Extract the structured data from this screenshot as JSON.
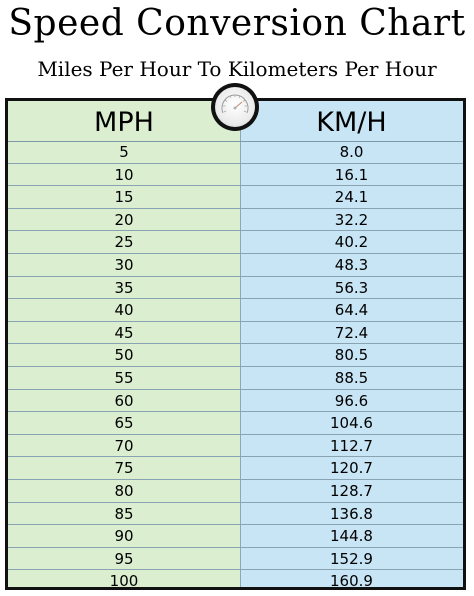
{
  "title": "Speed Conversion Chart",
  "subtitle": "Miles Per Hour To Kilometers Per Hour",
  "icons": {
    "gauge": "speedometer-icon"
  },
  "colors": {
    "mph_column": "#dbeed0",
    "kmh_column": "#c8e5f5",
    "border": "#111111"
  },
  "table": {
    "headers": {
      "mph": "MPH",
      "kmh": "KM/H"
    },
    "rows": [
      {
        "mph": "5",
        "kmh": "8.0"
      },
      {
        "mph": "10",
        "kmh": "16.1"
      },
      {
        "mph": "15",
        "kmh": "24.1"
      },
      {
        "mph": "20",
        "kmh": "32.2"
      },
      {
        "mph": "25",
        "kmh": "40.2"
      },
      {
        "mph": "30",
        "kmh": "48.3"
      },
      {
        "mph": "35",
        "kmh": "56.3"
      },
      {
        "mph": "40",
        "kmh": "64.4"
      },
      {
        "mph": "45",
        "kmh": "72.4"
      },
      {
        "mph": "50",
        "kmh": "80.5"
      },
      {
        "mph": "55",
        "kmh": "88.5"
      },
      {
        "mph": "60",
        "kmh": "96.6"
      },
      {
        "mph": "65",
        "kmh": "104.6"
      },
      {
        "mph": "70",
        "kmh": "112.7"
      },
      {
        "mph": "75",
        "kmh": "120.7"
      },
      {
        "mph": "80",
        "kmh": "128.7"
      },
      {
        "mph": "85",
        "kmh": "136.8"
      },
      {
        "mph": "90",
        "kmh": "144.8"
      },
      {
        "mph": "95",
        "kmh": "152.9"
      },
      {
        "mph": "100",
        "kmh": "160.9"
      }
    ]
  }
}
